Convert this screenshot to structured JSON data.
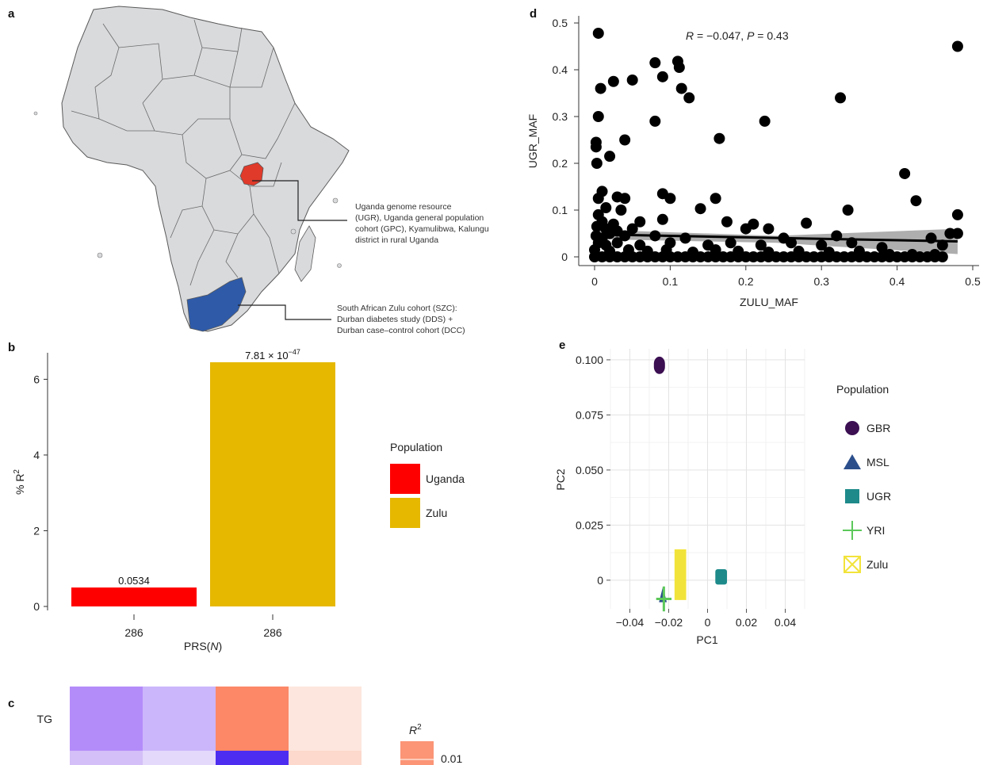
{
  "panel_labels": {
    "a": "a",
    "b": "b",
    "c": "c",
    "d": "d",
    "e": "e"
  },
  "map": {
    "uganda_annotation": [
      "Uganda genome resource",
      "(UGR), Uganda general population",
      "cohort (GPC), Kyamulibwa, Kalungu",
      "district in rural Uganda"
    ],
    "zulu_annotation": [
      "South African Zulu cohort (SZC):",
      "Durban diabetes study (DDS) +",
      "Durban case–control cohort (DCC)"
    ],
    "colors": {
      "land": "#d9dadc",
      "border": "#5a5a5a",
      "uganda": "#e03a2a",
      "south_africa": "#2e5aa8"
    }
  },
  "chart_data": [
    {
      "panel": "b",
      "type": "bar",
      "categories": [
        "286",
        "286"
      ],
      "series": [
        {
          "name": "Uganda",
          "values": [
            0.5,
            null
          ],
          "color": "#ff0000"
        },
        {
          "name": "Zulu",
          "values": [
            null,
            6.45
          ],
          "color": "#e6b800"
        }
      ],
      "data_labels_plain": [
        "0.0534"
      ],
      "data_label_sci": {
        "mantissa": "7.81 × 10",
        "exponent": "−47"
      },
      "xlabel_text": "PRS(",
      "xlabel_italic": "N",
      "xlabel_close": ")",
      "ylabel_text": "% R",
      "ylabel_sup": "2",
      "ylim": [
        0,
        6.7
      ],
      "yticks": [
        0,
        2,
        4,
        6
      ],
      "legend_title": "Population",
      "legend": [
        {
          "label": "Uganda",
          "color": "#ff0000"
        },
        {
          "label": "Zulu",
          "color": "#e6b800"
        }
      ]
    },
    {
      "panel": "c",
      "type": "heatmap",
      "rows": [
        "TG",
        ""
      ],
      "cells": [
        [
          "#b48cfa",
          "#cbb6fb",
          "#fc8868",
          "#fde6dd"
        ],
        [
          "#d4bff8",
          "#e4d8fb",
          "#4d2ef0",
          "#fcd9cc"
        ]
      ],
      "legend_title_italic": "R",
      "legend_title_sup": "2",
      "legend_ticks": [
        "0.01"
      ],
      "legend_color": "#fb9576"
    },
    {
      "panel": "d",
      "type": "scatter",
      "xlabel": "ZULU_MAF",
      "ylabel": "UGR_MAF",
      "xlim": [
        0,
        0.5
      ],
      "ylim": [
        0,
        0.5
      ],
      "xticks": [
        "0",
        "0.1",
        "0.2",
        "0.3",
        "0.4",
        "0.5"
      ],
      "yticks": [
        "0",
        "0.1",
        "0.2",
        "0.3",
        "0.4",
        "0.5"
      ],
      "annotation": {
        "r_sym": "R",
        "r_text": " = −0.047, ",
        "p_sym": "P",
        "p_text": " = 0.43"
      },
      "points": [
        [
          0.005,
          0.478
        ],
        [
          0.08,
          0.415
        ],
        [
          0.11,
          0.418
        ],
        [
          0.112,
          0.405
        ],
        [
          0.09,
          0.385
        ],
        [
          0.115,
          0.36
        ],
        [
          0.125,
          0.34
        ],
        [
          0.008,
          0.36
        ],
        [
          0.025,
          0.375
        ],
        [
          0.05,
          0.378
        ],
        [
          0.48,
          0.45
        ],
        [
          0.325,
          0.34
        ],
        [
          0.005,
          0.3
        ],
        [
          0.08,
          0.29
        ],
        [
          0.225,
          0.29
        ],
        [
          0.002,
          0.245
        ],
        [
          0.002,
          0.235
        ],
        [
          0.04,
          0.25
        ],
        [
          0.165,
          0.253
        ],
        [
          0.02,
          0.215
        ],
        [
          0.003,
          0.2
        ],
        [
          0.41,
          0.178
        ],
        [
          0.01,
          0.14
        ],
        [
          0.005,
          0.125
        ],
        [
          0.03,
          0.128
        ],
        [
          0.04,
          0.125
        ],
        [
          0.09,
          0.135
        ],
        [
          0.1,
          0.125
        ],
        [
          0.16,
          0.125
        ],
        [
          0.425,
          0.12
        ],
        [
          0.015,
          0.105
        ],
        [
          0.005,
          0.09
        ],
        [
          0.035,
          0.1
        ],
        [
          0.14,
          0.103
        ],
        [
          0.335,
          0.1
        ],
        [
          0.48,
          0.09
        ],
        [
          0.01,
          0.075
        ],
        [
          0.003,
          0.065
        ],
        [
          0.025,
          0.07
        ],
        [
          0.06,
          0.075
        ],
        [
          0.09,
          0.08
        ],
        [
          0.175,
          0.075
        ],
        [
          0.21,
          0.07
        ],
        [
          0.28,
          0.072
        ],
        [
          0.015,
          0.06
        ],
        [
          0.03,
          0.055
        ],
        [
          0.05,
          0.06
        ],
        [
          0.2,
          0.06
        ],
        [
          0.23,
          0.06
        ],
        [
          0.47,
          0.05
        ],
        [
          0.48,
          0.05
        ],
        [
          0.002,
          0.045
        ],
        [
          0.01,
          0.04
        ],
        [
          0.02,
          0.05
        ],
        [
          0.04,
          0.045
        ],
        [
          0.08,
          0.045
        ],
        [
          0.12,
          0.04
        ],
        [
          0.25,
          0.04
        ],
        [
          0.32,
          0.045
        ],
        [
          0.445,
          0.04
        ],
        [
          0.005,
          0.03
        ],
        [
          0.015,
          0.025
        ],
        [
          0.03,
          0.03
        ],
        [
          0.06,
          0.025
        ],
        [
          0.1,
          0.03
        ],
        [
          0.15,
          0.025
        ],
        [
          0.18,
          0.03
        ],
        [
          0.22,
          0.025
        ],
        [
          0.26,
          0.03
        ],
        [
          0.3,
          0.025
        ],
        [
          0.34,
          0.03
        ],
        [
          0.38,
          0.02
        ],
        [
          0.46,
          0.025
        ],
        [
          0.0,
          0.015
        ],
        [
          0.02,
          0.012
        ],
        [
          0.045,
          0.015
        ],
        [
          0.07,
          0.012
        ],
        [
          0.095,
          0.015
        ],
        [
          0.13,
          0.01
        ],
        [
          0.16,
          0.015
        ],
        [
          0.19,
          0.012
        ],
        [
          0.23,
          0.01
        ],
        [
          0.27,
          0.012
        ],
        [
          0.31,
          0.01
        ],
        [
          0.35,
          0.012
        ],
        [
          0.39,
          0.005
        ],
        [
          0.42,
          0.005
        ],
        [
          0.45,
          0.005
        ],
        [
          0.0,
          0.0
        ],
        [
          0.01,
          0.0
        ],
        [
          0.02,
          0.0
        ],
        [
          0.03,
          0.0
        ],
        [
          0.04,
          0.0
        ],
        [
          0.05,
          0.0
        ],
        [
          0.06,
          0.0
        ],
        [
          0.07,
          0.0
        ],
        [
          0.08,
          0.0
        ],
        [
          0.09,
          0.0
        ],
        [
          0.1,
          0.0
        ],
        [
          0.11,
          0.0
        ],
        [
          0.12,
          0.0
        ],
        [
          0.13,
          0.0
        ],
        [
          0.14,
          0.0
        ],
        [
          0.15,
          0.0
        ],
        [
          0.16,
          0.0
        ],
        [
          0.17,
          0.0
        ],
        [
          0.18,
          0.0
        ],
        [
          0.19,
          0.0
        ],
        [
          0.2,
          0.0
        ],
        [
          0.21,
          0.0
        ],
        [
          0.22,
          0.0
        ],
        [
          0.23,
          0.0
        ],
        [
          0.24,
          0.0
        ],
        [
          0.25,
          0.0
        ],
        [
          0.26,
          0.0
        ],
        [
          0.27,
          0.0
        ],
        [
          0.28,
          0.0
        ],
        [
          0.29,
          0.0
        ],
        [
          0.3,
          0.0
        ],
        [
          0.31,
          0.0
        ],
        [
          0.32,
          0.0
        ],
        [
          0.33,
          0.0
        ],
        [
          0.34,
          0.0
        ],
        [
          0.35,
          0.0
        ],
        [
          0.36,
          0.0
        ],
        [
          0.37,
          0.0
        ],
        [
          0.38,
          0.0
        ],
        [
          0.39,
          0.0
        ],
        [
          0.4,
          0.0
        ],
        [
          0.41,
          0.0
        ],
        [
          0.42,
          0.0
        ],
        [
          0.43,
          0.0
        ],
        [
          0.44,
          0.0
        ],
        [
          0.45,
          0.0
        ],
        [
          0.46,
          0.0
        ]
      ],
      "fit_line": {
        "x": [
          0,
          0.48
        ],
        "y": [
          0.048,
          0.033
        ]
      },
      "ci_band": {
        "x": [
          0,
          0.24,
          0.48
        ],
        "upper": [
          0.058,
          0.045,
          0.06
        ],
        "lower": [
          0.038,
          0.03,
          0.006
        ]
      }
    },
    {
      "panel": "e",
      "type": "scatter",
      "xlabel": "PC1",
      "ylabel": "PC2",
      "xlim": [
        -0.05,
        0.05
      ],
      "ylim": [
        -0.013,
        0.105
      ],
      "xticks": [
        "−0.04",
        "−0.02",
        "0",
        "0.02",
        "0.04"
      ],
      "xtick_values": [
        -0.04,
        -0.02,
        0,
        0.02,
        0.04
      ],
      "yticks": [
        "0",
        "0.025",
        "0.050",
        "0.075",
        "0.100"
      ],
      "ytick_values": [
        0,
        0.025,
        0.05,
        0.075,
        0.1
      ],
      "legend_title": "Population",
      "groups": [
        {
          "name": "GBR",
          "color": "#3b0f52",
          "shape": "circle",
          "x": [
            -0.026,
            -0.025
          ],
          "y": [
            0.095,
            0.1
          ]
        },
        {
          "name": "MSL",
          "color": "#2c4f8c",
          "shape": "triangle",
          "x": [
            -0.025,
            -0.021
          ],
          "y": [
            -0.01,
            -0.003
          ]
        },
        {
          "name": "UGR",
          "color": "#1e8a8a",
          "shape": "square",
          "x": [
            0.004,
            0.01
          ],
          "y": [
            -0.002,
            0.005
          ]
        },
        {
          "name": "YRI",
          "color": "#5cc85a",
          "shape": "plus",
          "x": [
            -0.024,
            -0.021
          ],
          "y": [
            -0.012,
            -0.005
          ]
        },
        {
          "name": "Zulu",
          "color": "#f2e33a",
          "shape": "xsquare",
          "x": [
            -0.017,
            -0.011
          ],
          "y": [
            -0.009,
            0.014
          ]
        }
      ]
    }
  ]
}
